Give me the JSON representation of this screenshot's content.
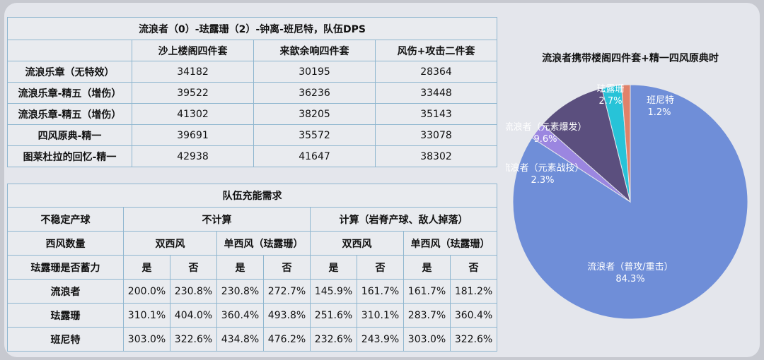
{
  "table1": {
    "title": "流浪者（0）-珐露珊（2）-钟离-班尼特，队伍DPS",
    "columns": [
      "沙上楼阁四件套",
      "来歆余响四件套",
      "风伤+攻击二件套"
    ],
    "rows": [
      {
        "label": "流浪乐章（无特效）",
        "values": [
          "34182",
          "30195",
          "28364"
        ]
      },
      {
        "label": "流浪乐章-精五（增伤）",
        "values": [
          "39522",
          "36236",
          "33448"
        ]
      },
      {
        "label": "流浪乐章-精五（增伤）",
        "values": [
          "41302",
          "38205",
          "35143"
        ]
      },
      {
        "label": "四风原典-精一",
        "values": [
          "39691",
          "35572",
          "33078"
        ]
      },
      {
        "label": "图莱杜拉的回忆-精一",
        "values": [
          "42938",
          "41647",
          "38302"
        ]
      }
    ]
  },
  "table2": {
    "title": "队伍充能需求",
    "h1_label": "不稳定产球",
    "h1_groups": [
      "不计算",
      "计算（岩脊产球、敌人掉落）"
    ],
    "h2_label": "西风数量",
    "h2_groups": [
      "双西风",
      "单西风（珐露珊）",
      "双西风",
      "单西风（珐露珊）"
    ],
    "h3_label": "珐露珊是否蓄力",
    "h3_values": [
      "是",
      "否",
      "是",
      "否",
      "是",
      "否",
      "是",
      "否"
    ],
    "rows": [
      {
        "label": "流浪者",
        "values": [
          "200.0%",
          "230.8%",
          "230.8%",
          "272.7%",
          "145.9%",
          "161.7%",
          "161.7%",
          "181.2%"
        ]
      },
      {
        "label": "珐露珊",
        "values": [
          "310.1%",
          "404.0%",
          "360.4%",
          "493.8%",
          "251.6%",
          "310.1%",
          "283.7%",
          "360.4%"
        ]
      },
      {
        "label": "班尼特",
        "values": [
          "303.0%",
          "322.6%",
          "434.8%",
          "476.2%",
          "232.6%",
          "243.9%",
          "303.0%",
          "322.6%"
        ]
      }
    ]
  },
  "chart_data": {
    "type": "pie",
    "title": "流浪者携带楼阁四件套+精一四风原典时",
    "slices": [
      {
        "name": "流浪者（普攻/重击）",
        "value": 84.3,
        "label": "84.3%",
        "color": "#6f8ed8"
      },
      {
        "name": "流浪者（元素战技）",
        "value": 2.3,
        "label": "2.3%",
        "color": "#9b86e0"
      },
      {
        "name": "流浪者（元素爆发）",
        "value": 9.6,
        "label": "9.6%",
        "color": "#5b4f7e"
      },
      {
        "name": "珐露珊",
        "value": 2.7,
        "label": "2.7%",
        "color": "#27c3d8"
      },
      {
        "name": "班尼特",
        "value": 1.2,
        "label": "1.2%",
        "color": "#e0826a"
      }
    ]
  }
}
